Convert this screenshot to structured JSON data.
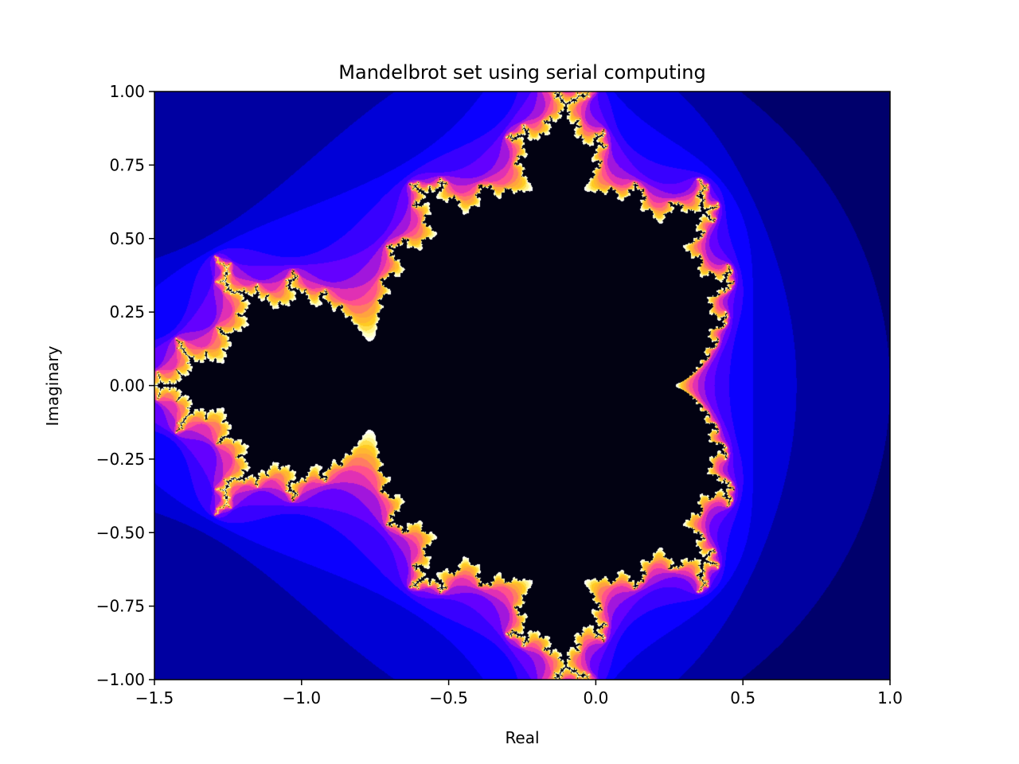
{
  "chart_data": {
    "type": "heatmap",
    "title": "Mandelbrot set using serial computing",
    "xlabel": "Real",
    "ylabel": "Imaginary",
    "xlim": [
      -1.5,
      1.0
    ],
    "ylim": [
      -1.0,
      1.0
    ],
    "xticks": [
      -1.5,
      -1.0,
      -0.5,
      0.0,
      0.5,
      1.0
    ],
    "xtick_labels": [
      "−1.5",
      "−1.0",
      "−0.5",
      "0.0",
      "0.5",
      "1.0"
    ],
    "yticks": [
      -1.0,
      -0.75,
      -0.5,
      -0.25,
      0.0,
      0.25,
      0.5,
      0.75,
      1.0
    ],
    "ytick_labels": [
      "−1.00",
      "−0.75",
      "−0.50",
      "−0.25",
      "0.00",
      "0.25",
      "0.50",
      "0.75",
      "1.00"
    ],
    "grid": false,
    "colormap": "gnuplot2",
    "max_iterations": 20,
    "colormap_stops": [
      "#000000",
      "#000080",
      "#0000ff",
      "#6a00ff",
      "#ff3da0",
      "#ffa040",
      "#ffd020",
      "#ffffb0",
      "#ffffff"
    ]
  }
}
